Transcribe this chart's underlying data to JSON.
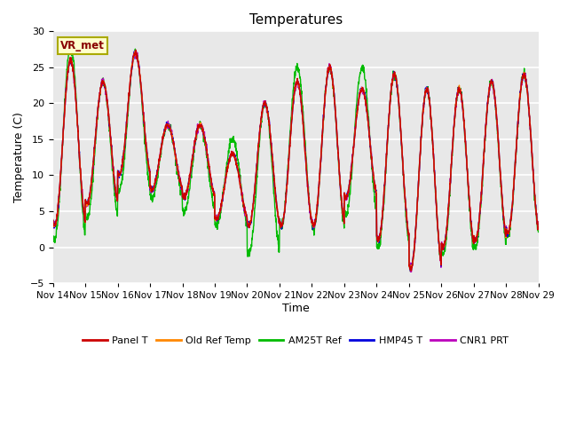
{
  "title": "Temperatures",
  "ylabel": "Temperature (C)",
  "xlabel": "Time",
  "ylim": [
    -5,
    30
  ],
  "plot_bg_color": "#e8e8e8",
  "series_colors": {
    "Panel T": "#cc0000",
    "Old Ref Temp": "#ff8800",
    "AM25T Ref": "#00bb00",
    "HMP45 T": "#0000dd",
    "CNR1 PRT": "#bb00bb"
  },
  "legend_label": "VR_met",
  "tick_labels": [
    "Nov 14",
    "Nov 15",
    "Nov 16",
    "Nov 17",
    "Nov 18",
    "Nov 19",
    "Nov 20",
    "Nov 21",
    "Nov 22",
    "Nov 23",
    "Nov 24",
    "Nov 25",
    "Nov 26",
    "Nov 27",
    "Nov 28",
    "Nov 29"
  ],
  "yticks": [
    -5,
    0,
    5,
    10,
    15,
    20,
    25,
    30
  ],
  "day_highs_base": [
    26,
    23,
    27,
    17,
    17,
    13,
    20,
    23,
    25,
    22,
    24,
    22,
    22,
    23,
    24
  ],
  "night_lows_base": [
    3,
    6,
    10,
    8,
    7,
    4,
    3,
    3,
    3,
    7,
    1,
    -3,
    0,
    1,
    2
  ],
  "am25t_day_highs": [
    28,
    23,
    27,
    17,
    17,
    15,
    20,
    25,
    25,
    25,
    24,
    22,
    22,
    23,
    24
  ],
  "am25t_night_lows": [
    1,
    4,
    8,
    7,
    5,
    3,
    -1,
    3,
    2.5,
    4.5,
    0,
    -3,
    -1,
    0,
    1.5
  ]
}
